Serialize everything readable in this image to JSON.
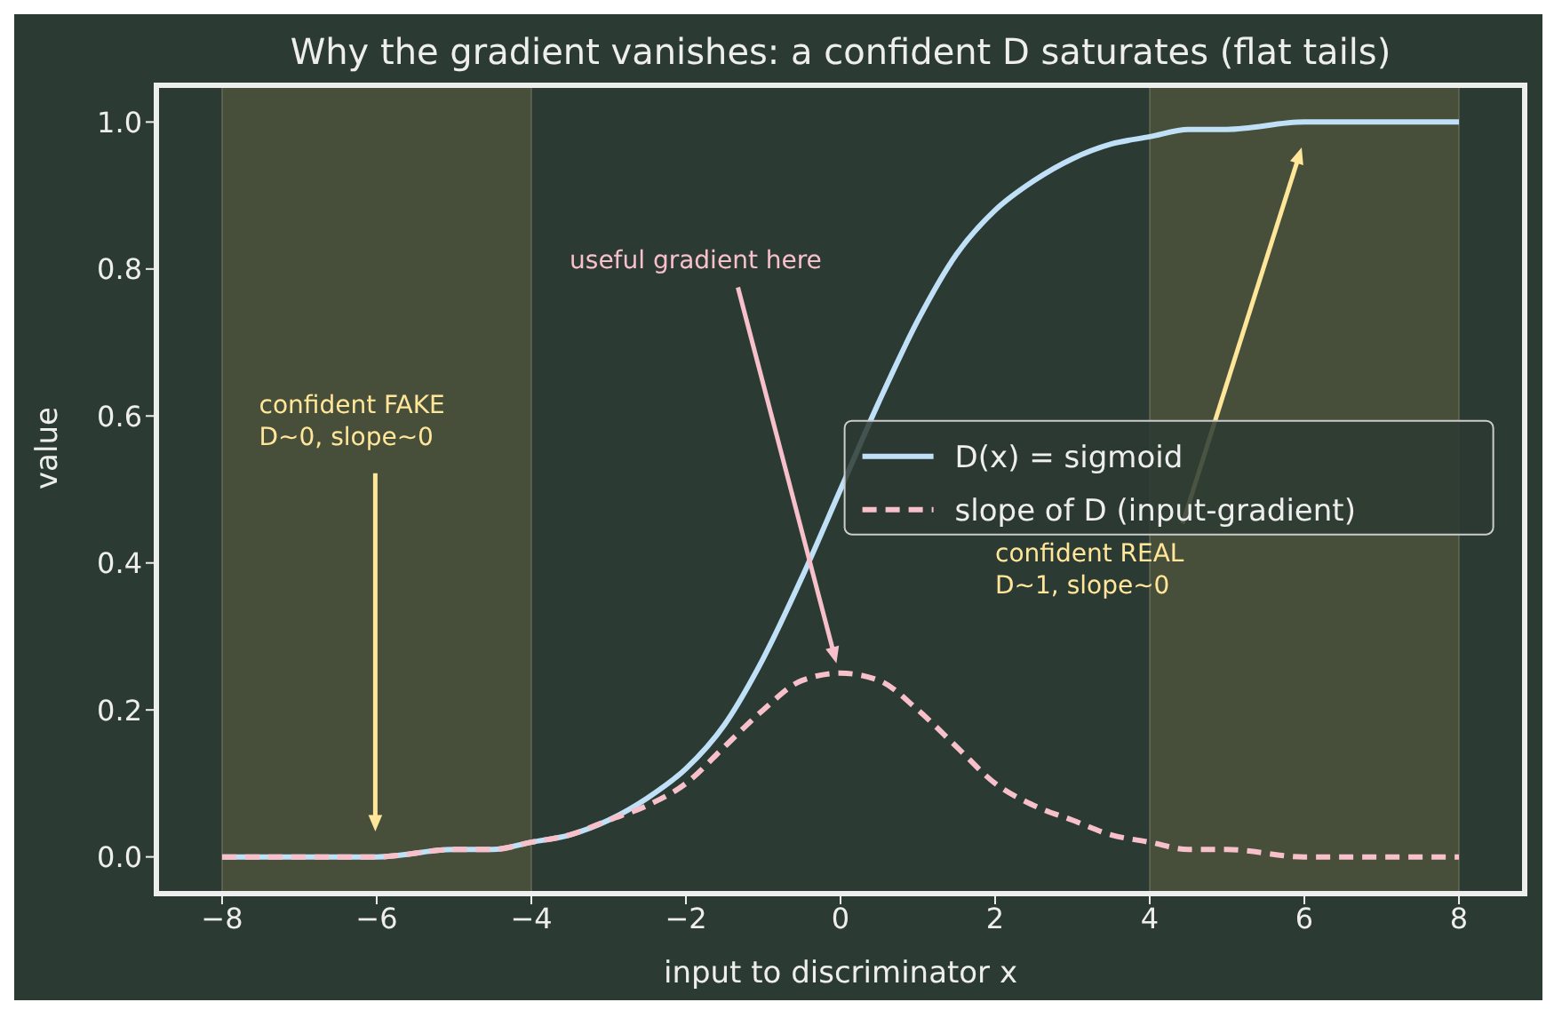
{
  "chart_data": {
    "type": "line",
    "title": "Why the gradient vanishes: a confident D saturates (flat tails)",
    "xlabel": "input to discriminator  x",
    "ylabel": "value",
    "x": [
      -8,
      -7,
      -6,
      -5,
      -4.5,
      -4,
      -3.5,
      -3,
      -2.5,
      -2,
      -1.5,
      -1,
      -0.5,
      0,
      0.5,
      1,
      1.5,
      2,
      2.5,
      3,
      3.5,
      4,
      4.5,
      5,
      6,
      7,
      8
    ],
    "series": [
      {
        "name": "D(x) = sigmoid",
        "color": "#bfe0f7",
        "line_style": "solid",
        "values": [
          0.0,
          0.0,
          0.0,
          0.01,
          0.01,
          0.02,
          0.03,
          0.05,
          0.08,
          0.12,
          0.18,
          0.27,
          0.38,
          0.5,
          0.62,
          0.73,
          0.82,
          0.88,
          0.92,
          0.95,
          0.97,
          0.98,
          0.99,
          0.99,
          1.0,
          1.0,
          1.0
        ]
      },
      {
        "name": "slope of D  (input-gradient)",
        "color": "#f7c0cb",
        "line_style": "dashed",
        "values": [
          0.0,
          0.0,
          0.0,
          0.01,
          0.01,
          0.02,
          0.03,
          0.05,
          0.07,
          0.1,
          0.15,
          0.2,
          0.24,
          0.25,
          0.24,
          0.2,
          0.15,
          0.1,
          0.07,
          0.05,
          0.03,
          0.02,
          0.01,
          0.01,
          0.0,
          0.0,
          0.0
        ]
      }
    ],
    "xlim": [
      -8.85,
      8.85
    ],
    "ylim": [
      -0.05,
      1.05
    ],
    "xticks": [
      {
        "value": -8,
        "label": "−8"
      },
      {
        "value": -6,
        "label": "−6"
      },
      {
        "value": -4,
        "label": "−4"
      },
      {
        "value": -2,
        "label": "−2"
      },
      0,
      2,
      4,
      6,
      8
    ],
    "yticks": [
      {
        "value": 0,
        "label": "0.0"
      },
      {
        "value": 0.2,
        "label": "0.2"
      },
      {
        "value": 0.4,
        "label": "0.4"
      },
      {
        "value": 0.6,
        "label": "0.6"
      },
      {
        "value": 0.8,
        "label": "0.8"
      },
      {
        "value": 1,
        "label": "1.0"
      }
    ],
    "bands": [
      {
        "axis": "x",
        "from": -8,
        "to": -4,
        "color": "#6b6b45"
      },
      {
        "axis": "x",
        "from": 4,
        "to": 8,
        "color": "#6b6b45"
      }
    ],
    "annotations": [
      "confident FAKE\nD~0, slope~0",
      "useful gradient here",
      "confident REAL\nD~1, slope~0"
    ],
    "legend": "right",
    "marker": "none"
  }
}
